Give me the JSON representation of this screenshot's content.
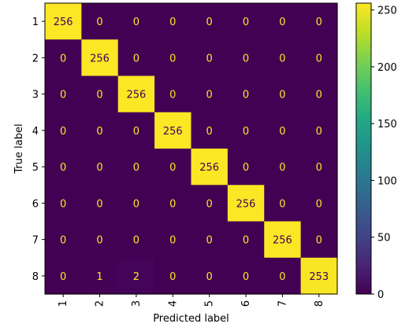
{
  "chart_data": {
    "type": "heatmap",
    "title": "",
    "xlabel": "Predicted label",
    "ylabel": "True label",
    "x_categories": [
      "1",
      "2",
      "3",
      "4",
      "5",
      "6",
      "7",
      "8"
    ],
    "y_categories": [
      "1",
      "2",
      "3",
      "4",
      "5",
      "6",
      "7",
      "8"
    ],
    "values": [
      [
        256,
        0,
        0,
        0,
        0,
        0,
        0,
        0
      ],
      [
        0,
        256,
        0,
        0,
        0,
        0,
        0,
        0
      ],
      [
        0,
        0,
        256,
        0,
        0,
        0,
        0,
        0
      ],
      [
        0,
        0,
        0,
        256,
        0,
        0,
        0,
        0
      ],
      [
        0,
        0,
        0,
        0,
        256,
        0,
        0,
        0
      ],
      [
        0,
        0,
        0,
        0,
        0,
        256,
        0,
        0
      ],
      [
        0,
        0,
        0,
        0,
        0,
        0,
        256,
        0
      ],
      [
        0,
        1,
        2,
        0,
        0,
        0,
        0,
        253
      ]
    ],
    "colormap": "viridis",
    "colorbar": {
      "range": [
        0,
        256
      ],
      "ticks": [
        0,
        50,
        100,
        150,
        200,
        250
      ]
    },
    "text_color_low": "#fde725",
    "text_color_high": "#440154"
  }
}
